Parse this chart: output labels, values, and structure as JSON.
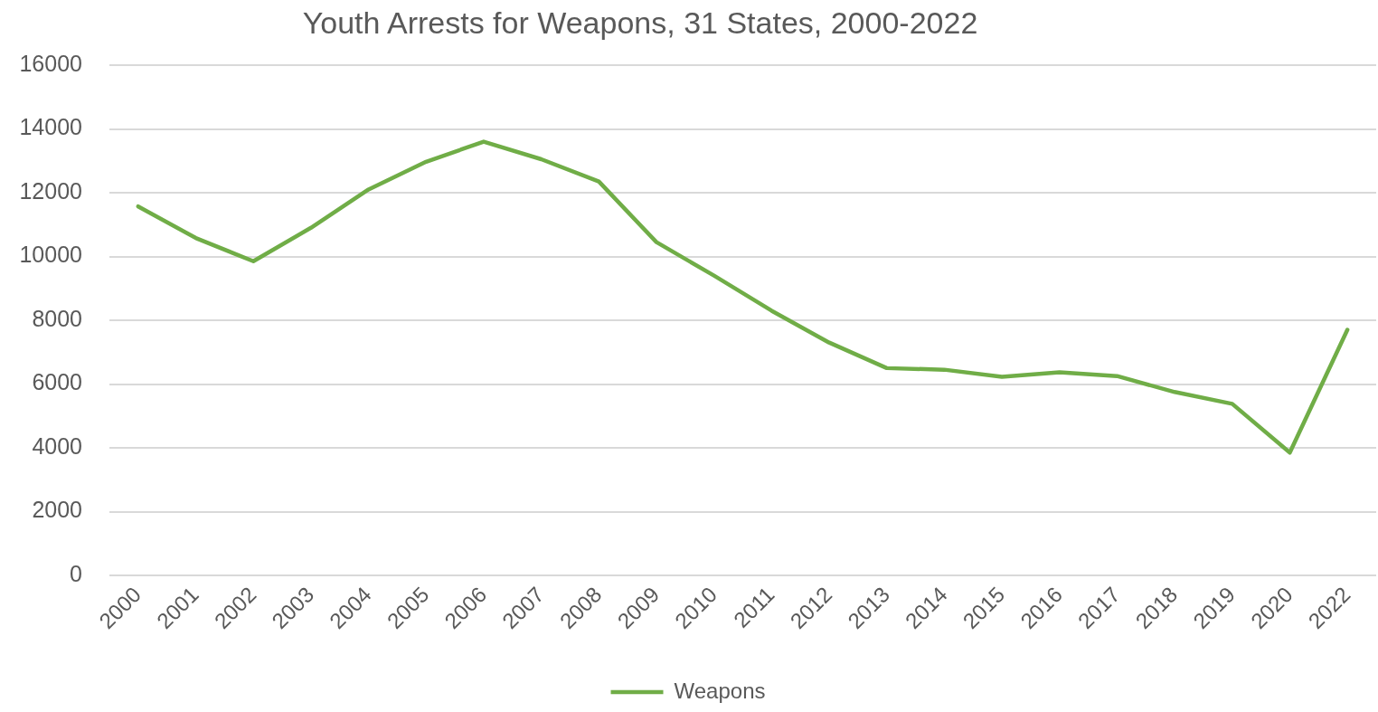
{
  "chart_data": {
    "type": "line",
    "title": "Youth Arrests for Weapons, 31 States, 2000-2022",
    "categories": [
      "2000",
      "2001",
      "2002",
      "2003",
      "2004",
      "2005",
      "2006",
      "2007",
      "2008",
      "2009",
      "2010",
      "2011",
      "2012",
      "2013",
      "2014",
      "2015",
      "2016",
      "2017",
      "2018",
      "2019",
      "2020",
      "2022"
    ],
    "series": [
      {
        "name": "Weapons",
        "color": "#70ad47",
        "values": [
          11570,
          10580,
          9850,
          10900,
          12100,
          12970,
          13600,
          13050,
          12350,
          10450,
          9400,
          8300,
          7300,
          6500,
          6450,
          6230,
          6370,
          6250,
          5750,
          5380,
          3850,
          7700
        ]
      }
    ],
    "ylim": [
      0,
      16000
    ],
    "yticks": [
      0,
      2000,
      4000,
      6000,
      8000,
      10000,
      12000,
      14000,
      16000
    ],
    "grid": "y",
    "legend": "bottom",
    "marker": "none",
    "line_style": "solid"
  }
}
